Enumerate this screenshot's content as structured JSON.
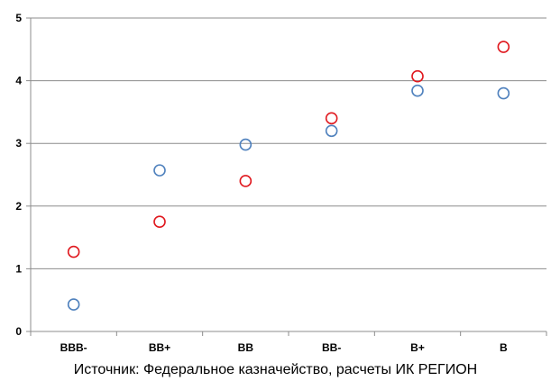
{
  "chart_data": {
    "type": "scatter",
    "categories": [
      "BBB-",
      "BB+",
      "BB",
      "BB-",
      "B+",
      "B"
    ],
    "series": [
      {
        "values": [
          0.43,
          2.57,
          2.98,
          3.2,
          3.84,
          3.8
        ],
        "color": "#4f81bd"
      },
      {
        "values": [
          1.27,
          1.75,
          2.4,
          3.4,
          4.07,
          4.54
        ],
        "color": "#e0191f"
      }
    ],
    "ylim": [
      0,
      5
    ],
    "yticks": [
      "0",
      "1",
      "2",
      "3",
      "4",
      "5"
    ],
    "grid": true
  },
  "source": "Источник: Федеральное казначейство, расчеты ИК РЕГИОН"
}
